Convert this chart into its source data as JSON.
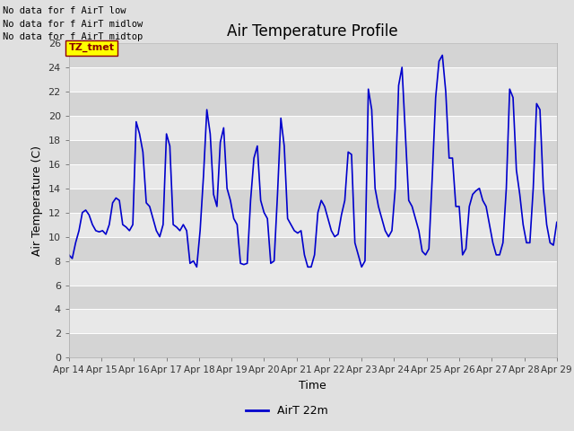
{
  "title": "Air Temperature Profile",
  "xlabel": "Time",
  "ylabel": "Air Temperature (C)",
  "annotations": [
    "No data for f AirT low",
    "No data for f AirT midlow",
    "No data for f AirT midtop"
  ],
  "tz_label": "TZ_tmet",
  "legend_label": "AirT 22m",
  "line_color": "#0000cc",
  "background_color": "#e0e0e0",
  "plot_bg_color": "#e8e8e8",
  "ylim": [
    0,
    26
  ],
  "yticks": [
    0,
    2,
    4,
    6,
    8,
    10,
    12,
    14,
    16,
    18,
    20,
    22,
    24,
    26
  ],
  "x_labels": [
    "Apr 14",
    "Apr 15",
    "Apr 16",
    "Apr 17",
    "Apr 18",
    "Apr 19",
    "Apr 20",
    "Apr 21",
    "Apr 22",
    "Apr 23",
    "Apr 24",
    "Apr 25",
    "Apr 26",
    "Apr 27",
    "Apr 28",
    "Apr 29"
  ],
  "air_temp": [
    8.5,
    8.2,
    9.5,
    10.5,
    12.0,
    12.2,
    11.8,
    11.0,
    10.5,
    10.4,
    10.5,
    10.2,
    11.0,
    12.8,
    13.2,
    13.0,
    11.0,
    10.8,
    10.5,
    11.0,
    19.5,
    18.5,
    17.0,
    12.8,
    12.5,
    11.5,
    10.5,
    10.0,
    11.0,
    18.5,
    17.5,
    11.0,
    10.8,
    10.5,
    11.0,
    10.5,
    7.8,
    8.0,
    7.5,
    10.5,
    15.0,
    20.5,
    18.5,
    13.5,
    12.5,
    17.8,
    19.0,
    14.0,
    13.0,
    11.5,
    11.0,
    7.8,
    7.7,
    7.8,
    13.0,
    16.5,
    17.5,
    13.0,
    12.0,
    11.5,
    7.8,
    8.0,
    13.5,
    19.8,
    17.5,
    11.5,
    11.0,
    10.5,
    10.3,
    10.5,
    8.5,
    7.5,
    7.5,
    8.5,
    12.0,
    13.0,
    12.5,
    11.5,
    10.5,
    10.0,
    10.2,
    11.8,
    13.0,
    17.0,
    16.8,
    9.5,
    8.5,
    7.5,
    8.0,
    22.2,
    20.5,
    14.0,
    12.5,
    11.5,
    10.5,
    10.0,
    10.5,
    14.0,
    22.5,
    24.0,
    18.5,
    13.0,
    12.5,
    11.5,
    10.5,
    8.8,
    8.5,
    9.0,
    15.0,
    21.5,
    24.5,
    25.0,
    22.0,
    16.5,
    16.5,
    12.5,
    12.5,
    8.5,
    9.0,
    12.5,
    13.5,
    13.8,
    14.0,
    13.0,
    12.5,
    11.0,
    9.5,
    8.5,
    8.5,
    9.5,
    14.0,
    22.2,
    21.5,
    15.5,
    13.5,
    11.0,
    9.5,
    9.5,
    14.0,
    21.0,
    20.5,
    14.0,
    11.0,
    9.5,
    9.3,
    11.2
  ]
}
